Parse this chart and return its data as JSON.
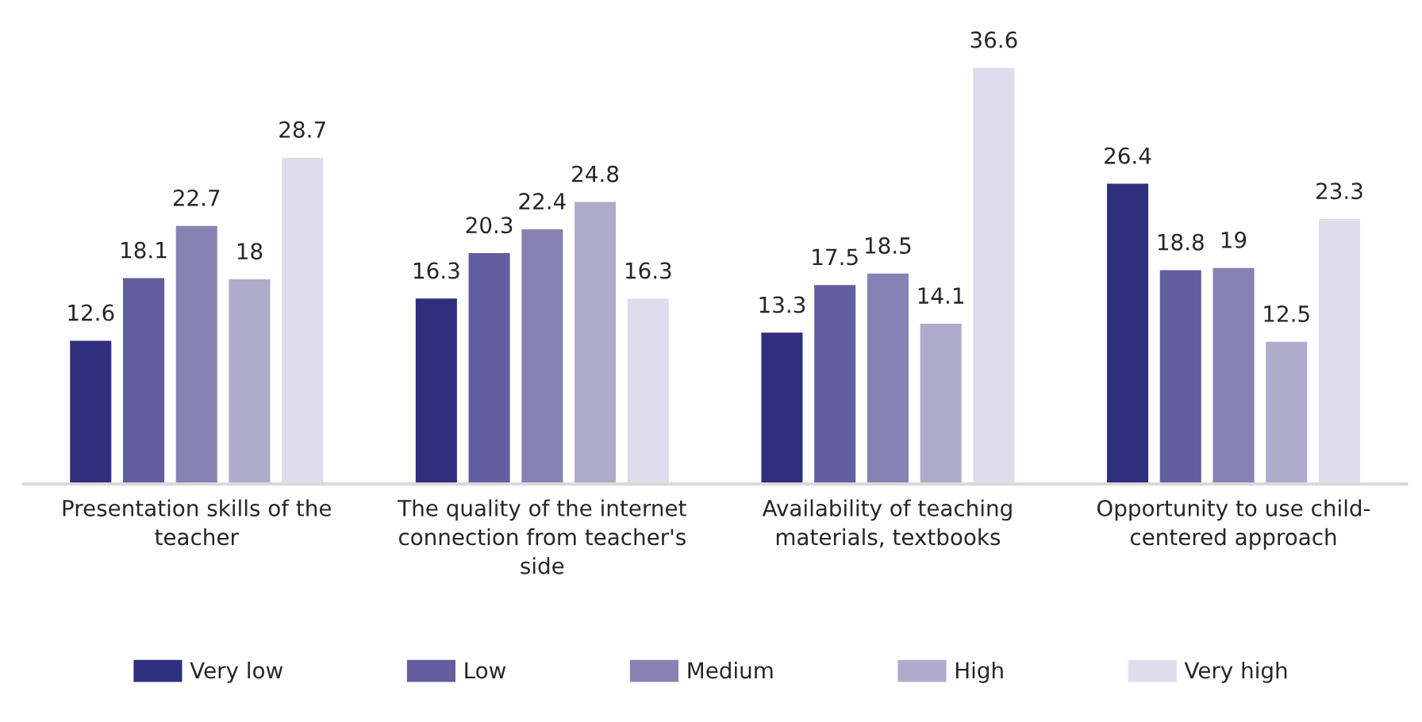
{
  "chart_data": {
    "type": "bar",
    "categories": [
      "Presentation skills of the teacher",
      "The quality of the internet connection from teacher's side",
      "Availability of teaching materials, textbooks",
      "Opportunity to use child-centered approach"
    ],
    "series": [
      {
        "name": "Very low",
        "color": "#2f2f7e",
        "values": [
          12.6,
          16.3,
          13.3,
          26.4
        ]
      },
      {
        "name": "Low",
        "color": "#635e9d",
        "values": [
          18.1,
          20.3,
          17.5,
          18.8
        ]
      },
      {
        "name": "Medium",
        "color": "#8782b3",
        "values": [
          22.7,
          22.4,
          18.5,
          19
        ]
      },
      {
        "name": "High",
        "color": "#afabcb",
        "values": [
          18,
          24.8,
          14.1,
          12.5
        ]
      },
      {
        "name": "Very high",
        "color": "#dfdded",
        "values": [
          28.7,
          16.3,
          36.6,
          23.3
        ]
      }
    ],
    "data_labels": true,
    "legend": "bottom",
    "grid": false
  }
}
